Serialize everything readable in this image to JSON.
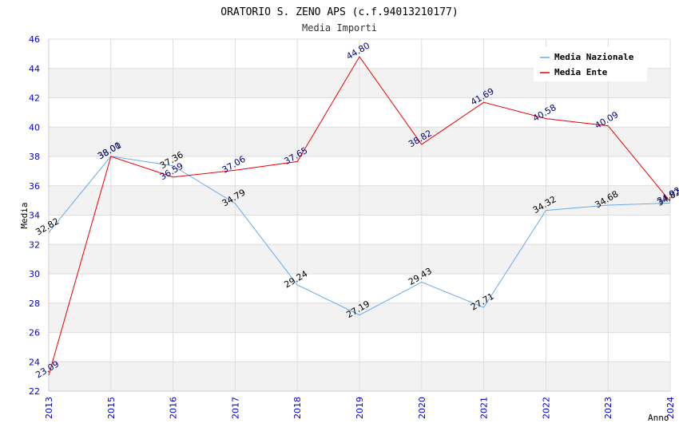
{
  "chart_data": {
    "type": "line",
    "title": "ORATORIO S. ZENO APS (c.f.94013210177)",
    "subtitle": "Media Importi",
    "xlabel": "Anno",
    "ylabel": "Media",
    "ylim": [
      22,
      46
    ],
    "yticks": [
      "22",
      "24",
      "26",
      "28",
      "30",
      "32",
      "34",
      "36",
      "38",
      "40",
      "42",
      "44",
      "46"
    ],
    "categories": [
      "2013",
      "2015",
      "2016",
      "2017",
      "2018",
      "2019",
      "2020",
      "2021",
      "2022",
      "2023",
      "2024"
    ],
    "legend_position": "top-right",
    "colors": {
      "tick_text": "#0000cc",
      "band": "#f2f2f2",
      "grid": "#dddddd",
      "axis": "#cccccc"
    },
    "series": [
      {
        "name": "Media Nazionale",
        "color": "#66aaee",
        "label_color": "#000000",
        "values": [
          32.82,
          38.01,
          37.36,
          34.79,
          29.24,
          27.19,
          29.43,
          27.71,
          34.32,
          34.68,
          34.82
        ],
        "labels": [
          "32.82",
          "38.01",
          "37.36",
          "34.79",
          "29.24",
          "27.19",
          "29.43",
          "27.71",
          "34.32",
          "34.68",
          "34.82"
        ]
      },
      {
        "name": "Media Ente",
        "color": "#ee0000",
        "label_color": "#000080",
        "values": [
          23.09,
          38.0,
          36.59,
          37.06,
          37.65,
          44.8,
          38.82,
          41.69,
          40.58,
          40.09,
          34.93
        ],
        "labels": [
          "23.09",
          "38.00",
          "36.59",
          "37.06",
          "37.65",
          "44.80",
          "38.82",
          "41.69",
          "40.58",
          "40.09",
          "34.93"
        ]
      }
    ]
  }
}
